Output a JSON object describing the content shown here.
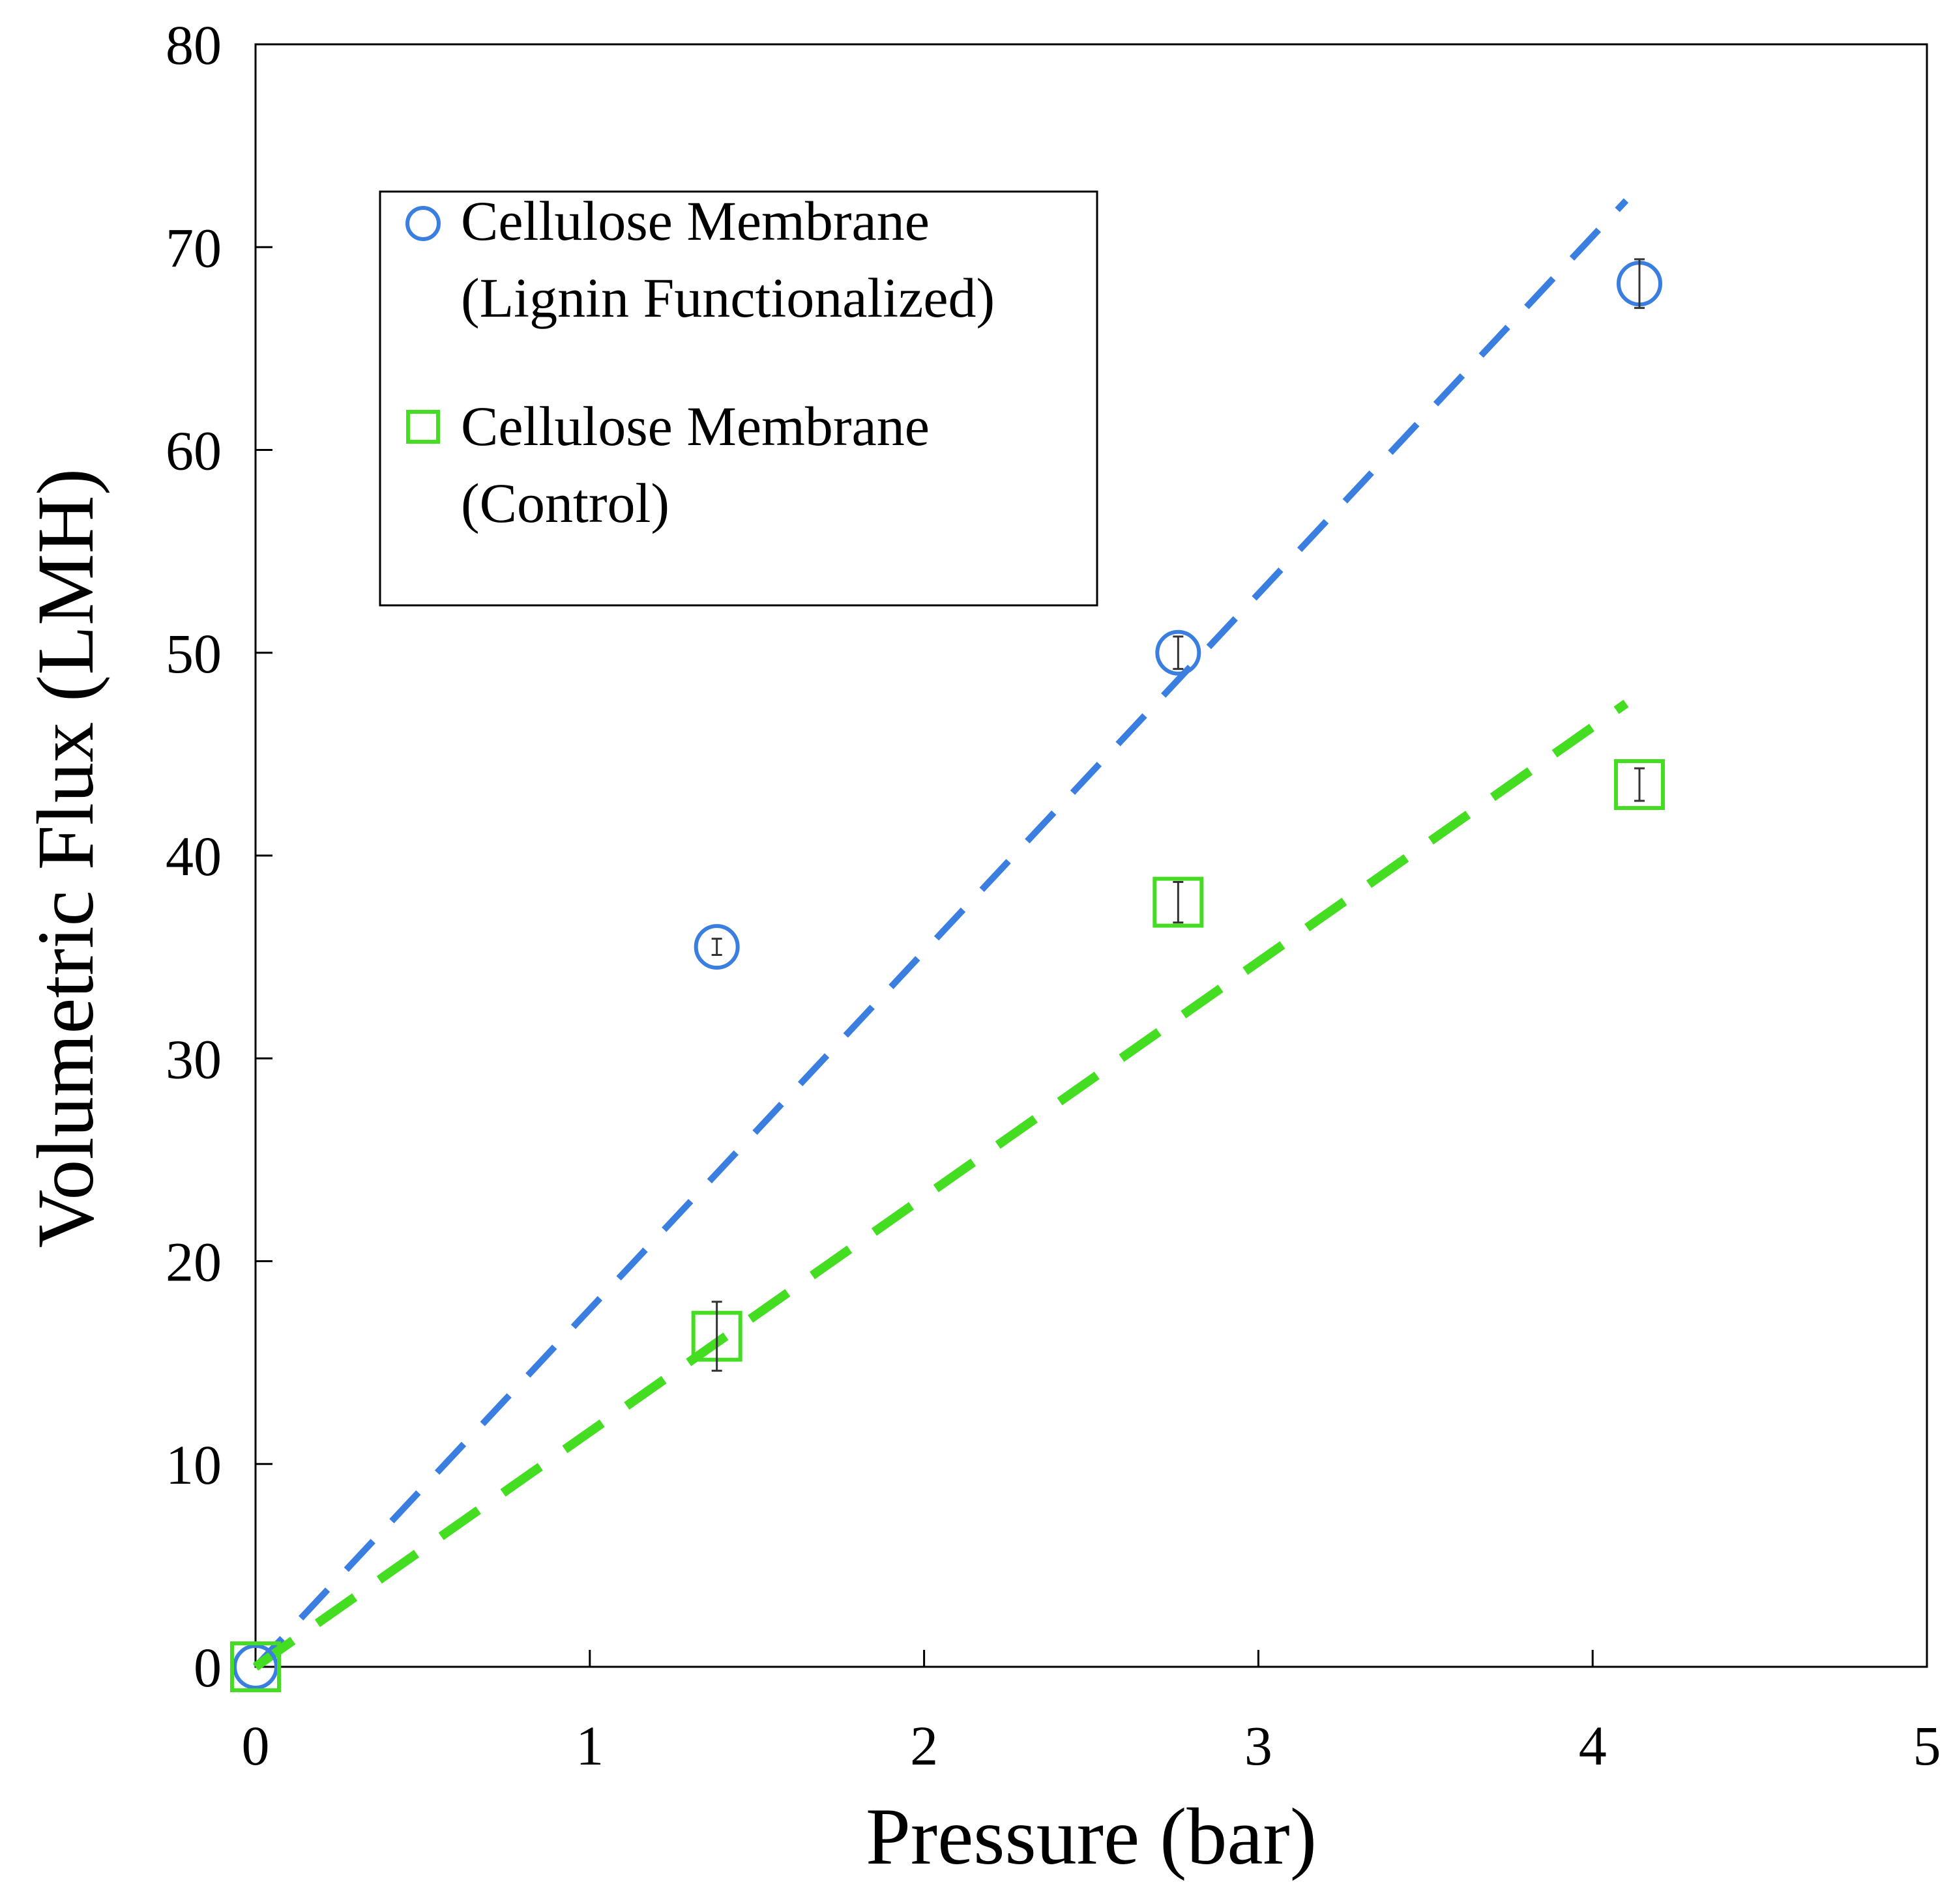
{
  "chart_data": {
    "type": "scatter",
    "title": "",
    "xlabel": "Pressure (bar)",
    "ylabel": "Volumetric Flux (LMH)",
    "xlim": [
      0,
      5
    ],
    "ylim": [
      0,
      80
    ],
    "xticks": [
      "0",
      "1",
      "2",
      "3",
      "4",
      "5"
    ],
    "yticks": [
      "0",
      "10",
      "20",
      "30",
      "40",
      "50",
      "60",
      "70",
      "80"
    ],
    "grid": false,
    "legend_position": "top-left",
    "series": [
      {
        "name": "Cellulose Membrane (Lignin Functionalized)",
        "legend_line1": "Cellulose Membrane",
        "legend_line2": "(Lignin Functionalized)",
        "marker": "circle",
        "color": "#3a7fe0",
        "x": [
          0,
          1.38,
          2.76,
          4.14
        ],
        "y": [
          0,
          35.5,
          50.0,
          68.2
        ],
        "error": [
          0,
          0.4,
          0.8,
          1.2
        ],
        "fit": {
          "x": [
            0,
            4.1
          ],
          "y": [
            0,
            72.3
          ]
        }
      },
      {
        "name": "Cellulose Membrane (Control)",
        "legend_line1": "Cellulose Membrane",
        "legend_line2": "(Control)",
        "marker": "square",
        "color": "#44dd22",
        "x": [
          0,
          1.38,
          2.76,
          4.14
        ],
        "y": [
          0,
          16.3,
          37.7,
          43.5
        ],
        "error": [
          0,
          1.7,
          1.0,
          0.8
        ],
        "fit": {
          "x": [
            0,
            4.1
          ],
          "y": [
            0,
            47.5
          ]
        }
      }
    ]
  }
}
